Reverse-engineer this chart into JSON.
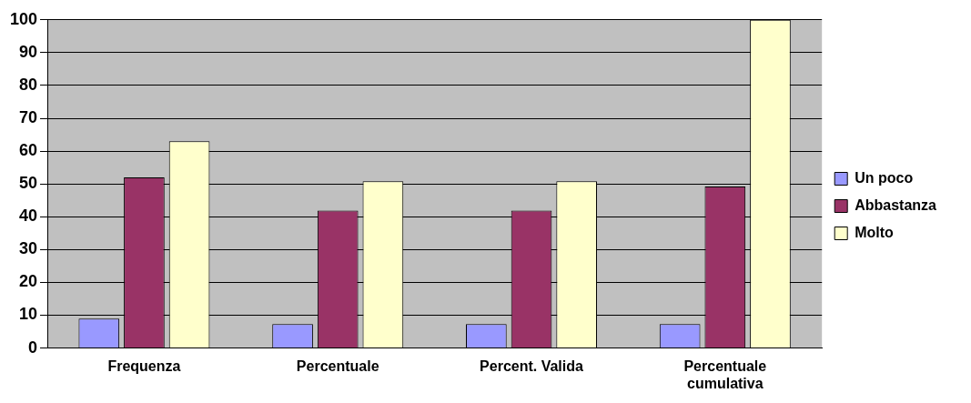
{
  "chart_data": {
    "type": "bar",
    "categories": [
      "Frequenza",
      "Percentuale",
      "Percent. Valida",
      "Percentuale cumulativa"
    ],
    "series": [
      {
        "name": "Un poco",
        "color": "#9999ff",
        "values": [
          9,
          7.3,
          7.3,
          7.3
        ]
      },
      {
        "name": "Abbastanza",
        "color": "#993366",
        "values": [
          52,
          41.9,
          41.9,
          49.2
        ]
      },
      {
        "name": "Molto",
        "color": "#ffffcc",
        "values": [
          63,
          50.8,
          50.8,
          100
        ]
      }
    ],
    "ylim": [
      0,
      100
    ],
    "yticks": [
      0,
      10,
      20,
      30,
      40,
      50,
      60,
      70,
      80,
      90,
      100
    ],
    "grid": "y",
    "legend": "right"
  }
}
